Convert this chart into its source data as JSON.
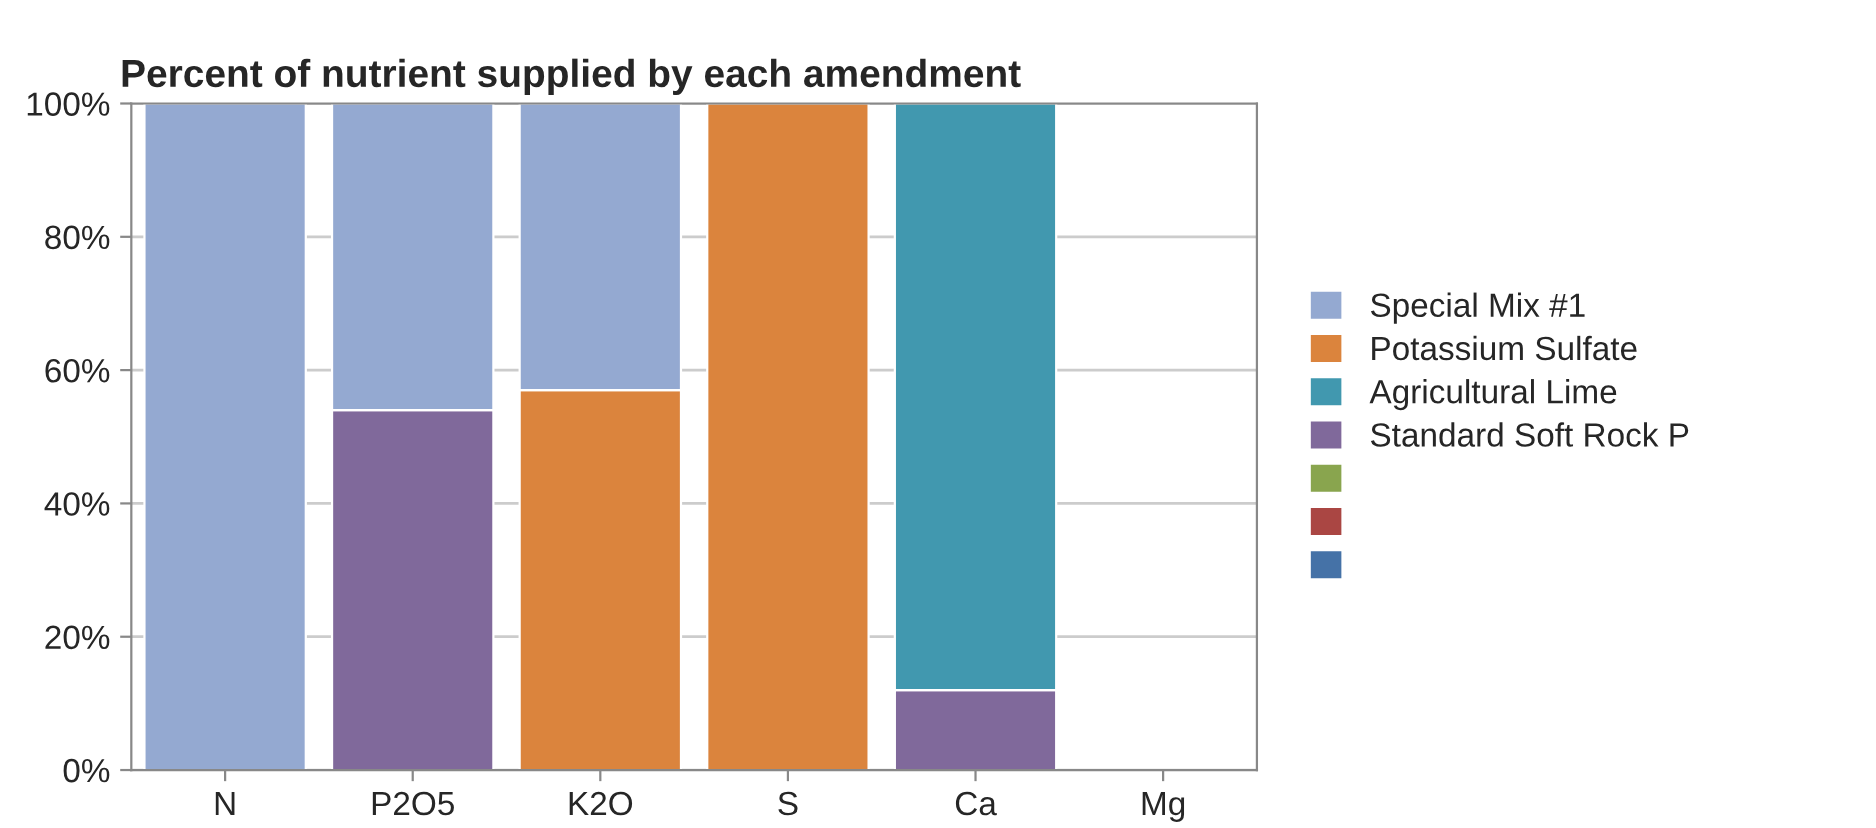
{
  "chart_data": {
    "type": "bar",
    "title": "Percent of nutrient supplied by each amendment",
    "categories": [
      "N",
      "P2O5",
      "K2O",
      "S",
      "Ca",
      "Mg"
    ],
    "stacked": true,
    "ylim": [
      0,
      100
    ],
    "yticks": [
      {
        "value": 0,
        "label": "0%"
      },
      {
        "value": 20,
        "label": "20%"
      },
      {
        "value": 40,
        "label": "40%"
      },
      {
        "value": 60,
        "label": "60%"
      },
      {
        "value": 80,
        "label": "80%"
      },
      {
        "value": 100,
        "label": "100%"
      }
    ],
    "grid": "y",
    "legend": "right",
    "series": [
      {
        "color": "#4572a7",
        "values": [
          null,
          null,
          null,
          null,
          null,
          null
        ]
      },
      {
        "color": "#aa4643",
        "values": [
          null,
          null,
          null,
          null,
          null,
          null
        ]
      },
      {
        "color": "#89a54e",
        "values": [
          null,
          null,
          null,
          null,
          null,
          null
        ]
      },
      {
        "name": "Standard Soft Rock P",
        "color": "#80699b",
        "values": [
          0,
          54,
          0,
          0,
          12,
          0
        ]
      },
      {
        "name": "Agricultural Lime",
        "color": "#4198af",
        "values": [
          0,
          0,
          0,
          0,
          88,
          0
        ]
      },
      {
        "name": "Potassium Sulfate",
        "color": "#db843d",
        "values": [
          0,
          0,
          57,
          100,
          0,
          0
        ]
      },
      {
        "name": "Special Mix #1",
        "color": "#94a9d1",
        "values": [
          100,
          46,
          43,
          0,
          0,
          0
        ]
      }
    ]
  }
}
